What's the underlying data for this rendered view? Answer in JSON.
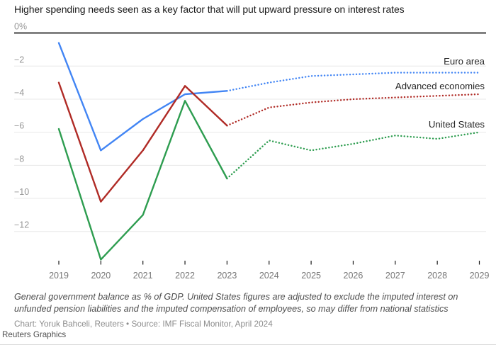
{
  "header": {
    "title": "Higher spending needs seen as a key factor that will put upward pressure on interest rates"
  },
  "chart_data": {
    "type": "line",
    "title": "Higher spending needs seen as a key factor that will put upward pressure on interest rates",
    "x": [
      2019,
      2020,
      2021,
      2022,
      2023,
      2024,
      2025,
      2026,
      2027,
      2028,
      2029
    ],
    "y_axis": {
      "unit": "%",
      "range": [
        -13.9,
        0.8
      ],
      "ticks": [
        {
          "value": 0,
          "label": "0%"
        },
        {
          "value": -2,
          "label": "−2"
        },
        {
          "value": -4,
          "label": "−4"
        },
        {
          "value": -6,
          "label": "−6"
        },
        {
          "value": -8,
          "label": "−8"
        },
        {
          "value": -10,
          "label": "−10"
        },
        {
          "value": -12,
          "label": "−12"
        }
      ]
    },
    "grid": true,
    "legend_position": "end-of-line",
    "projection_from_year": 2023,
    "projection_style": "dotted",
    "series": [
      {
        "name": "Euro area",
        "color": "#4285f4",
        "values": [
          -0.6,
          -7.1,
          -5.2,
          -3.7,
          -3.5,
          -3.0,
          -2.6,
          -2.5,
          -2.4,
          -2.4,
          -2.4
        ],
        "label_baseline_y": 91
      },
      {
        "name": "Advanced economies",
        "color": "#b02b26",
        "values": [
          -3.0,
          -10.2,
          -7.1,
          -3.2,
          -5.6,
          -4.5,
          -4.2,
          -4.0,
          -3.9,
          -3.8,
          -3.7
        ],
        "label_baseline_y": 126
      },
      {
        "name": "United States",
        "color": "#2e9d50",
        "values": [
          -5.8,
          -13.7,
          -11.0,
          -4.1,
          -8.8,
          -6.5,
          -7.1,
          -6.7,
          -6.2,
          -6.4,
          -6.0
        ],
        "label_baseline_y": 180
      }
    ]
  },
  "footer": {
    "note": "General government balance as % of GDP. United States figures are adjusted to exclude the imputed interest on unfunded pension liabilities and the imputed compensation of employees, so may differ from national statistics",
    "credit": "Chart: Yoruk Bahceli, Reuters • Source: IMF Fiscal Monitor, April 2024",
    "brand": "Reuters Graphics"
  }
}
